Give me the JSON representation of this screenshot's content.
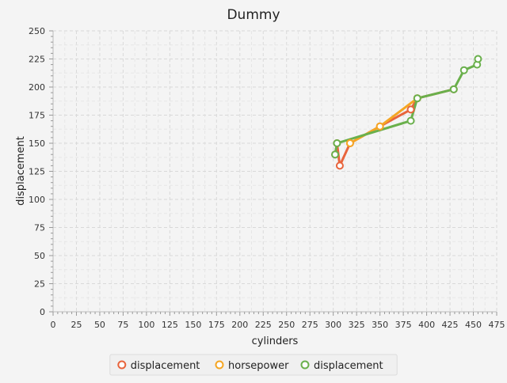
{
  "chart_data": {
    "type": "line",
    "title": "Dummy",
    "xlabel": "cylinders",
    "ylabel": "displacement",
    "xlim": [
      0,
      475
    ],
    "ylim": [
      0,
      250
    ],
    "x_ticks": [
      0,
      25,
      50,
      75,
      100,
      125,
      150,
      175,
      200,
      225,
      250,
      275,
      300,
      325,
      350,
      375,
      400,
      425,
      450,
      475
    ],
    "y_ticks": [
      0,
      25,
      50,
      75,
      100,
      125,
      150,
      175,
      200,
      225,
      250
    ],
    "grid": true,
    "legend_position": "bottom",
    "series": [
      {
        "name": "displacement",
        "color": "#e8643c",
        "points": [
          [
            302,
            140
          ],
          [
            304,
            150
          ],
          [
            307,
            130
          ],
          [
            318,
            150
          ],
          [
            350,
            165
          ],
          [
            383,
            180
          ],
          [
            390,
            190
          ],
          [
            429,
            198
          ]
        ]
      },
      {
        "name": "horsepower",
        "color": "#f5a623",
        "points": [
          [
            318,
            150
          ],
          [
            350,
            165
          ],
          [
            390,
            190
          ]
        ]
      },
      {
        "name": "displacement",
        "color": "#6ab04c",
        "points": [
          [
            302,
            140
          ],
          [
            304,
            150
          ],
          [
            383,
            170
          ],
          [
            390,
            190
          ],
          [
            429,
            198
          ],
          [
            440,
            215
          ],
          [
            454,
            220
          ],
          [
            455,
            225
          ]
        ]
      }
    ]
  }
}
